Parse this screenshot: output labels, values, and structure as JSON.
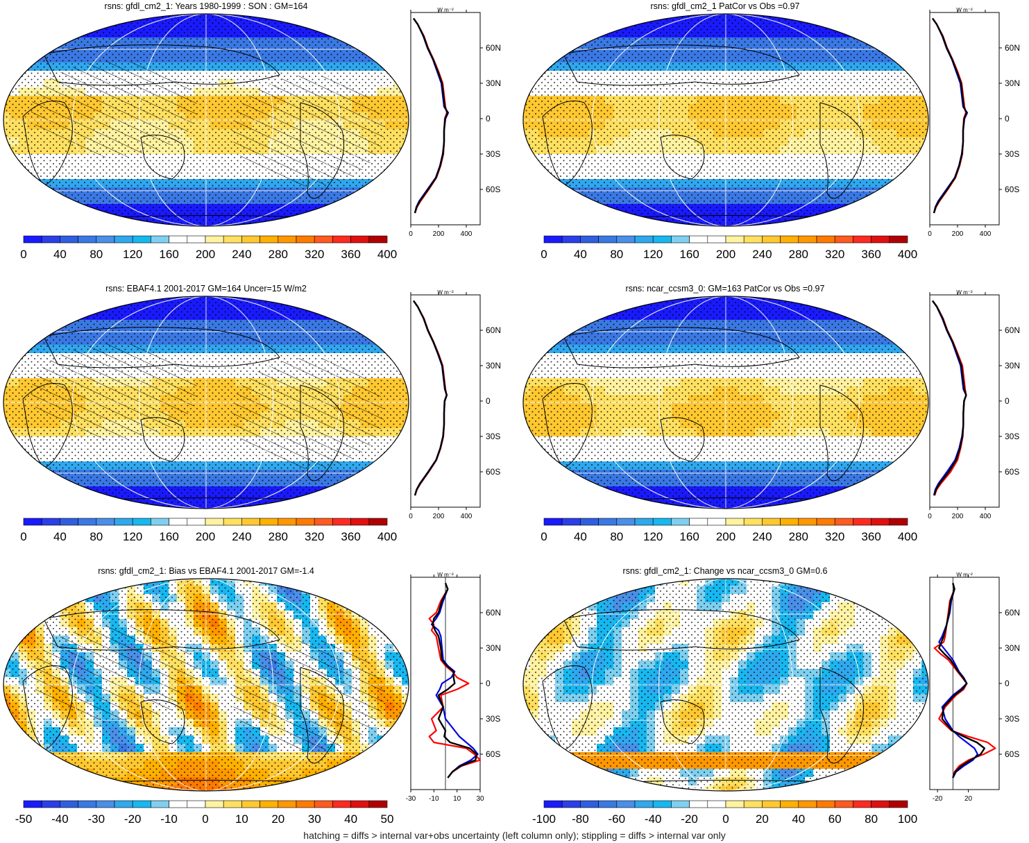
{
  "footer_note": "hatching = diffs > internal var+obs uncertainty (left column only); stippling = diffs > internal var only",
  "profile_unit": "W m⁻²",
  "lat_ticks": [
    "60N",
    "30N",
    "0",
    "30S",
    "60S"
  ],
  "palette": [
    "#1a1aff",
    "#2a3fe8",
    "#2f5fe0",
    "#3a78e4",
    "#4a8fe8",
    "#2fa8ee",
    "#17b8f0",
    "#7fd0f0",
    "#ffffff",
    "#ffffff",
    "#fff2a0",
    "#ffe060",
    "#ffc830",
    "#ffb000",
    "#ff9800",
    "#ff7a00",
    "#ff5a20",
    "#ff2a20",
    "#e01010",
    "#b00000"
  ],
  "series_colors": {
    "model": "#0000dd",
    "obs": "#ff0000",
    "mean": "#000000"
  },
  "panels": [
    {
      "id": "p1",
      "title": "rsns: gfdl_cm2_1: Years 1980-1999 : SON : GM=164",
      "colorbar_labels": [
        "0",
        "40",
        "80",
        "120",
        "160",
        "200",
        "240",
        "280",
        "320",
        "360",
        "400"
      ],
      "xticks": [
        "0",
        "200",
        "400"
      ],
      "xrange": [
        0,
        500
      ],
      "field": "abs",
      "hatched": true,
      "profile": {
        "lat": [
          85,
          80,
          70,
          60,
          50,
          40,
          30,
          20,
          10,
          5,
          0,
          -10,
          -20,
          -30,
          -40,
          -50,
          -60,
          -70,
          -75,
          -80
        ],
        "model": [
          20,
          50,
          90,
          120,
          160,
          190,
          220,
          230,
          240,
          270,
          250,
          240,
          240,
          230,
          210,
          180,
          120,
          60,
          40,
          30
        ],
        "obs": [
          20,
          50,
          95,
          125,
          165,
          200,
          230,
          240,
          250,
          260,
          245,
          240,
          240,
          235,
          215,
          185,
          130,
          70,
          45,
          30
        ],
        "mean": [
          20,
          50,
          92,
          122,
          162,
          195,
          225,
          235,
          245,
          265,
          248,
          240,
          240,
          232,
          212,
          182,
          125,
          65,
          42,
          30
        ]
      }
    },
    {
      "id": "p2",
      "title": "rsns: gfdl_cm2_1 PatCor vs Obs =0.97",
      "colorbar_labels": [
        "0",
        "40",
        "80",
        "120",
        "160",
        "200",
        "240",
        "280",
        "320",
        "360",
        "400"
      ],
      "xticks": [
        "0",
        "200",
        "400"
      ],
      "xrange": [
        0,
        500
      ],
      "field": "abs",
      "hatched": false,
      "profile": {
        "lat": [
          85,
          80,
          70,
          60,
          50,
          40,
          30,
          20,
          10,
          5,
          0,
          -10,
          -20,
          -30,
          -40,
          -50,
          -60,
          -70,
          -75,
          -80
        ],
        "model": [
          20,
          50,
          90,
          120,
          160,
          190,
          220,
          230,
          240,
          270,
          250,
          240,
          240,
          230,
          210,
          180,
          120,
          60,
          40,
          30
        ],
        "obs": [
          20,
          50,
          95,
          125,
          165,
          200,
          230,
          240,
          250,
          260,
          245,
          240,
          240,
          235,
          215,
          185,
          130,
          70,
          45,
          30
        ],
        "mean": [
          20,
          50,
          92,
          122,
          162,
          195,
          225,
          235,
          245,
          265,
          248,
          240,
          240,
          232,
          212,
          182,
          125,
          65,
          42,
          30
        ]
      }
    },
    {
      "id": "p3",
      "title": "rsns: EBAF4.1 2001-2017 GM=164 Uncer=15 W/m2",
      "colorbar_labels": [
        "0",
        "40",
        "80",
        "120",
        "160",
        "200",
        "240",
        "280",
        "320",
        "360",
        "400"
      ],
      "xticks": [
        "0",
        "200",
        "400"
      ],
      "xrange": [
        0,
        500
      ],
      "field": "abs",
      "hatched": true,
      "profile": {
        "lat": [
          85,
          80,
          70,
          60,
          50,
          40,
          30,
          20,
          10,
          5,
          0,
          -10,
          -20,
          -30,
          -40,
          -50,
          -60,
          -70,
          -75,
          -80
        ],
        "model": [
          20,
          50,
          92,
          122,
          162,
          195,
          225,
          235,
          245,
          260,
          245,
          240,
          240,
          232,
          212,
          182,
          125,
          65,
          42,
          30
        ],
        "obs": [
          20,
          50,
          95,
          125,
          165,
          200,
          230,
          240,
          250,
          258,
          243,
          240,
          240,
          235,
          215,
          185,
          130,
          70,
          45,
          30
        ],
        "mean": [
          20,
          50,
          93,
          123,
          163,
          197,
          227,
          237,
          247,
          259,
          244,
          240,
          240,
          233,
          213,
          183,
          127,
          67,
          43,
          30
        ]
      }
    },
    {
      "id": "p4",
      "title": "rsns: ncar_ccsm3_0: GM=163 PatCor vs Obs =0.97",
      "colorbar_labels": [
        "0",
        "40",
        "80",
        "120",
        "160",
        "200",
        "240",
        "280",
        "320",
        "360",
        "400"
      ],
      "xticks": [
        "0",
        "200",
        "400"
      ],
      "xrange": [
        0,
        500
      ],
      "field": "abs",
      "hatched": false,
      "profile": {
        "lat": [
          85,
          80,
          70,
          60,
          50,
          40,
          30,
          20,
          10,
          5,
          0,
          -10,
          -20,
          -30,
          -40,
          -50,
          -60,
          -70,
          -75,
          -80
        ],
        "model": [
          20,
          50,
          90,
          122,
          162,
          192,
          222,
          232,
          242,
          262,
          248,
          242,
          242,
          232,
          212,
          182,
          124,
          62,
          40,
          30
        ],
        "obs": [
          20,
          52,
          96,
          127,
          168,
          202,
          235,
          245,
          255,
          262,
          246,
          242,
          242,
          238,
          222,
          200,
          150,
          80,
          50,
          35
        ],
        "mean": [
          20,
          51,
          93,
          124,
          165,
          197,
          228,
          238,
          248,
          262,
          247,
          242,
          242,
          235,
          217,
          190,
          137,
          70,
          45,
          32
        ]
      }
    },
    {
      "id": "p5",
      "title": "rsns: gfdl_cm2_1: Bias vs EBAF4.1 2001-2017  GM=-1.4",
      "colorbar_labels": [
        "-50",
        "-40",
        "-30",
        "-20",
        "-10",
        "0",
        "10",
        "20",
        "30",
        "40",
        "50"
      ],
      "xticks": [
        "-30",
        "-10",
        "10",
        "30"
      ],
      "xrange": [
        -30,
        30
      ],
      "field": "bias",
      "hatched": true,
      "profile": {
        "lat": [
          85,
          80,
          70,
          60,
          55,
          50,
          45,
          40,
          30,
          20,
          15,
          10,
          5,
          0,
          -5,
          -10,
          -20,
          -30,
          -40,
          -45,
          -50,
          -55,
          -60,
          -65,
          -70,
          -75,
          -80
        ],
        "model": [
          0,
          2,
          -2,
          -5,
          -8,
          -12,
          -6,
          -4,
          -3,
          -2,
          2,
          8,
          5,
          -3,
          -5,
          -8,
          -2,
          0,
          8,
          12,
          18,
          24,
          28,
          22,
          12,
          6,
          2
        ],
        "obs": [
          0,
          2,
          -4,
          -8,
          -14,
          -10,
          -12,
          -8,
          -6,
          -4,
          0,
          6,
          10,
          20,
          10,
          -4,
          -2,
          -12,
          -8,
          -14,
          -10,
          18,
          25,
          30,
          14,
          6,
          2
        ],
        "mean": [
          0,
          2,
          -3,
          -6,
          -10,
          -11,
          -9,
          -6,
          -4,
          -3,
          1,
          7,
          7,
          8,
          2,
          -6,
          -2,
          -6,
          0,
          -1,
          4,
          21,
          27,
          26,
          13,
          6,
          2
        ]
      }
    },
    {
      "id": "p6",
      "title": "rsns: gfdl_cm2_1: Change vs ncar_ccsm3_0 GM=0.6",
      "colorbar_labels": [
        "-100",
        "-80",
        "-60",
        "-40",
        "-20",
        "0",
        "20",
        "40",
        "60",
        "80",
        "100"
      ],
      "xticks": [
        "-20",
        "20"
      ],
      "xrange": [
        -30,
        60
      ],
      "field": "change",
      "hatched": false,
      "profile": {
        "lat": [
          85,
          80,
          70,
          60,
          50,
          40,
          35,
          30,
          25,
          20,
          10,
          5,
          0,
          -5,
          -10,
          -20,
          -30,
          -40,
          -45,
          -50,
          -55,
          -60,
          -65,
          -70,
          -75,
          -80
        ],
        "model": [
          0,
          2,
          -2,
          -4,
          -8,
          -14,
          -18,
          -12,
          -6,
          0,
          8,
          14,
          18,
          10,
          0,
          -14,
          -10,
          0,
          8,
          18,
          28,
          32,
          26,
          14,
          4,
          0
        ],
        "obs": [
          0,
          2,
          -4,
          -6,
          -8,
          -10,
          -12,
          -24,
          -16,
          -6,
          6,
          12,
          18,
          14,
          4,
          -10,
          -18,
          -2,
          20,
          45,
          55,
          40,
          20,
          8,
          2,
          0
        ],
        "mean": [
          0,
          2,
          -3,
          -5,
          -8,
          -12,
          -15,
          -18,
          -11,
          -3,
          7,
          13,
          18,
          12,
          2,
          -12,
          -14,
          -1,
          14,
          31,
          41,
          36,
          23,
          11,
          3,
          0
        ]
      }
    }
  ]
}
